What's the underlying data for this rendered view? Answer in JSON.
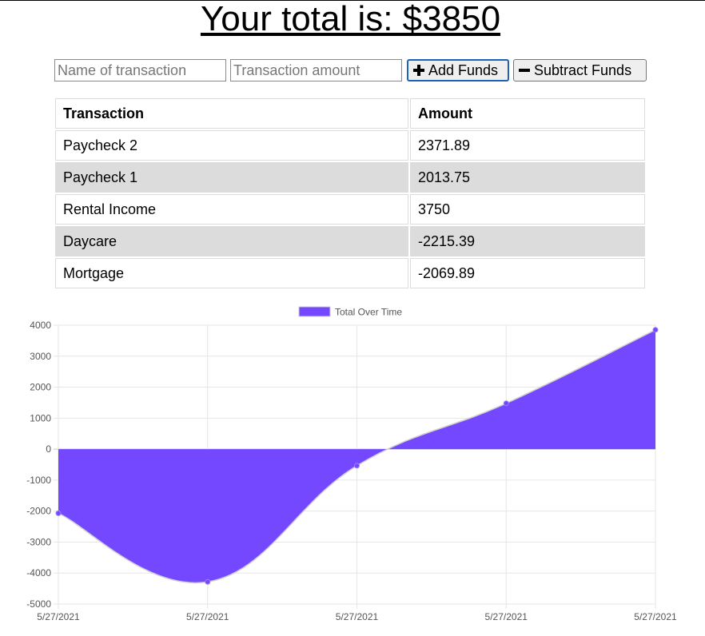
{
  "header": {
    "total_text": "Your total is: $3850"
  },
  "form": {
    "name_placeholder": "Name of transaction",
    "amount_placeholder": "Transaction amount",
    "add_label": "Add Funds",
    "subtract_label": "Subtract Funds"
  },
  "table": {
    "headers": [
      "Transaction",
      "Amount"
    ],
    "rows": [
      {
        "name": "Paycheck 2",
        "amount": "2371.89"
      },
      {
        "name": "Paycheck 1",
        "amount": "2013.75"
      },
      {
        "name": "Rental Income",
        "amount": "3750"
      },
      {
        "name": "Daycare",
        "amount": "-2215.39"
      },
      {
        "name": "Mortgage",
        "amount": "-2069.89"
      }
    ]
  },
  "chart_data": {
    "type": "area",
    "legend": {
      "label": "Total Over Time",
      "position": "top"
    },
    "x": [
      "5/27/2021",
      "5/27/2021",
      "5/27/2021",
      "5/27/2021",
      "5/27/2021"
    ],
    "series": [
      {
        "name": "Total Over Time",
        "values": [
          -2069.89,
          -4285.28,
          -535.28,
          1478.47,
          3850.36
        ]
      }
    ],
    "ylim": [
      -5000,
      4000
    ],
    "yticks": [
      4000,
      3000,
      2000,
      1000,
      0,
      -1000,
      -2000,
      -3000,
      -4000,
      -5000
    ],
    "grid": true,
    "colors": {
      "fill": "#7448ff",
      "line": "#cfcfcf",
      "grid": "#e6e6e6",
      "point": "#7448ff"
    }
  }
}
